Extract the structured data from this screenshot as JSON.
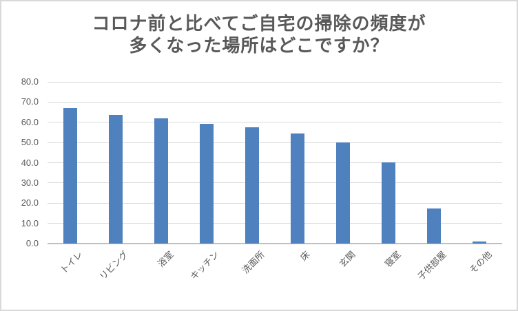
{
  "chart_data": {
    "type": "bar",
    "title": "コロナ前と比べてご自宅の掃除の頻度が 多くなった場所はどこですか？",
    "title_lines": [
      "コロナ前と比べてご自宅の掃除の頻度が",
      "多くなった場所はどこですか？"
    ],
    "categories": [
      "トイレ",
      "リビング",
      "浴室",
      "キッチン",
      "洗面所",
      "床",
      "玄関",
      "寝室",
      "子供部屋",
      "その他"
    ],
    "values": [
      67.1,
      63.8,
      61.8,
      59.2,
      57.7,
      54.6,
      50.0,
      40.3,
      17.3,
      1.0
    ],
    "xlabel": "",
    "ylabel": "",
    "ylim": [
      0,
      80
    ],
    "yticks": [
      0,
      10,
      20,
      30,
      40,
      50,
      60,
      70,
      80
    ],
    "ytick_labels": [
      "0.0",
      "10.0",
      "20.0",
      "30.0",
      "40.0",
      "50.0",
      "60.0",
      "70.0",
      "80.0"
    ],
    "grid": true,
    "legend_position": "none",
    "colors": {
      "bar": "#4E81BD",
      "gridline": "#D9D9D9",
      "axis_line": "#BFBFBF",
      "text": "#595959",
      "title": "#595959",
      "border": "#D9D9D9",
      "background": "#FFFFFF"
    }
  }
}
